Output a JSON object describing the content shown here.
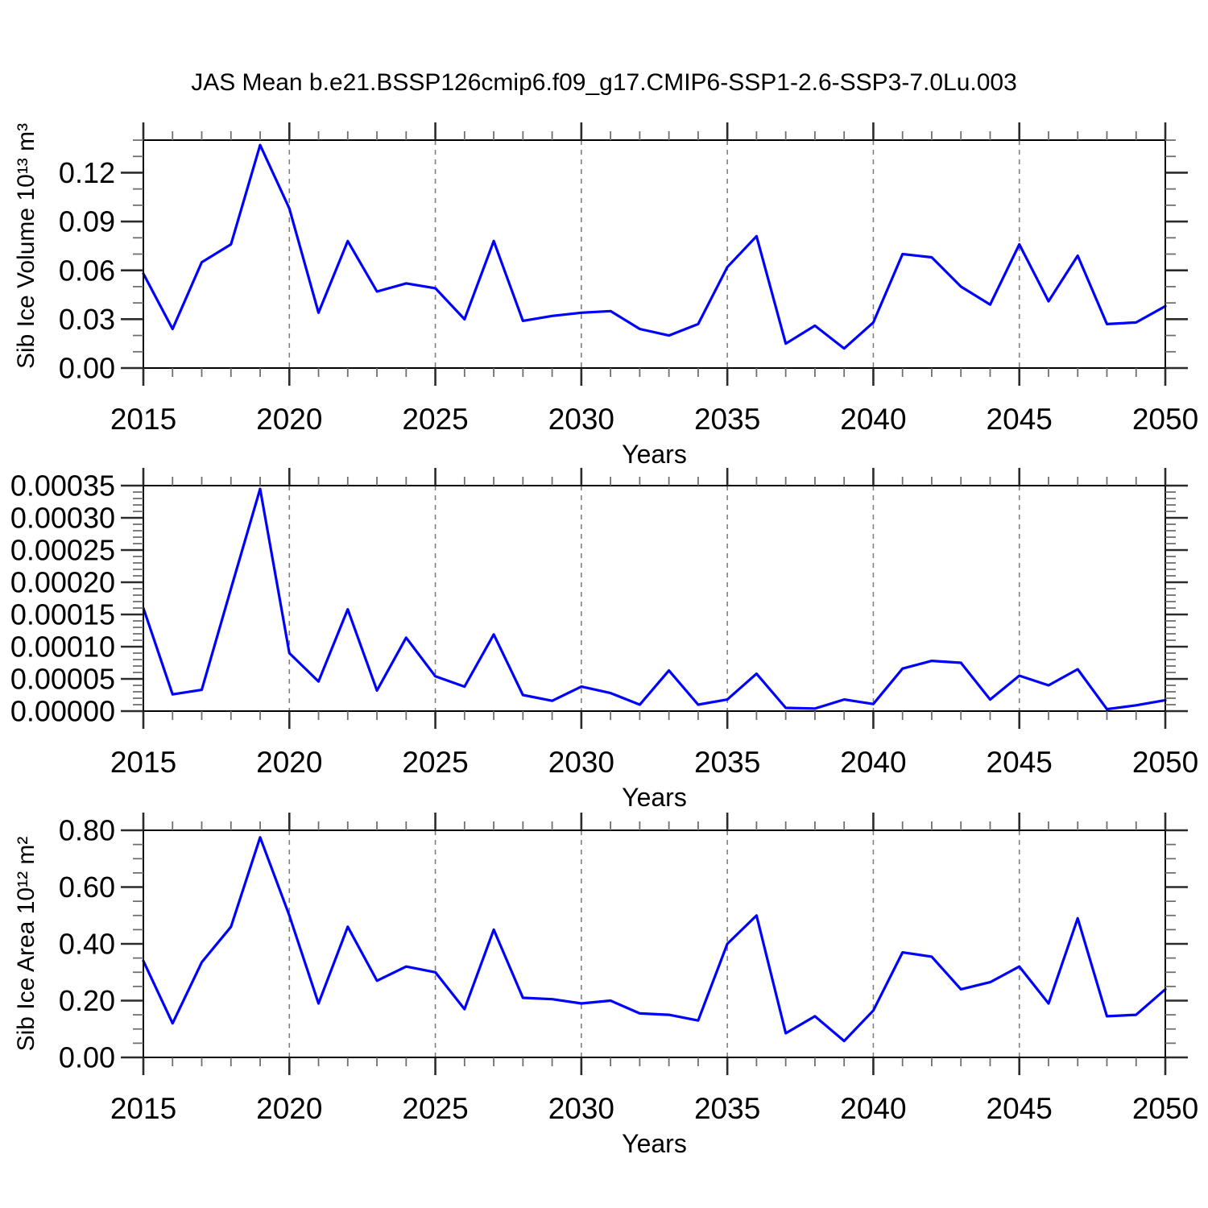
{
  "title": "JAS Mean b.e21.BSSP126cmip6.f09_g17.CMIP6-SSP1-2.6-SSP3-7.0Lu.003",
  "colors": {
    "line": "#0000ff",
    "grid": "#808080",
    "axis": "#000000",
    "background": "#ffffff",
    "text": "#000000"
  },
  "years": [
    2015,
    2016,
    2017,
    2018,
    2019,
    2020,
    2021,
    2022,
    2023,
    2024,
    2025,
    2026,
    2027,
    2028,
    2029,
    2030,
    2031,
    2032,
    2033,
    2034,
    2035,
    2036,
    2037,
    2038,
    2039,
    2040,
    2041,
    2042,
    2043,
    2044,
    2045,
    2046,
    2047,
    2048,
    2049,
    2050
  ],
  "x_axis": {
    "label": "Years",
    "range": [
      2015,
      2050
    ],
    "tick_values": [
      2015,
      2020,
      2025,
      2030,
      2035,
      2040,
      2045,
      2050
    ],
    "tick_labels": [
      "2015",
      "2020",
      "2025",
      "2030",
      "2035",
      "2040",
      "2045",
      "2050"
    ],
    "minor_step": 1,
    "gridline_values": [
      2020,
      2025,
      2030,
      2035,
      2040,
      2045
    ]
  },
  "chart_data": [
    {
      "type": "line",
      "name": "sib-ice-volume",
      "ylabel": "Sib Ice Volume 10¹³ m³",
      "xlabel": "Years",
      "ylim": [
        0,
        0.14
      ],
      "y_tick_values": [
        0,
        0.03,
        0.06,
        0.09,
        0.12
      ],
      "y_tick_labels": [
        "0.00",
        "0.03",
        "0.06",
        "0.09",
        "0.12"
      ],
      "y_minor_step": 0.01,
      "grid": "vertical-only",
      "legend": "none",
      "values": [
        0.058,
        0.024,
        0.065,
        0.076,
        0.137,
        0.098,
        0.034,
        0.078,
        0.047,
        0.052,
        0.049,
        0.03,
        0.078,
        0.029,
        0.032,
        0.034,
        0.035,
        0.024,
        0.02,
        0.027,
        0.062,
        0.081,
        0.015,
        0.026,
        0.012,
        0.028,
        0.07,
        0.068,
        0.05,
        0.039,
        0.076,
        0.041,
        0.069,
        0.027,
        0.028,
        0.038
      ]
    },
    {
      "type": "line",
      "name": "sib-ice-middle",
      "ylabel": "",
      "xlabel": "Years",
      "ylim": [
        0,
        0.00035
      ],
      "y_tick_values": [
        0,
        5e-05,
        0.0001,
        0.00015,
        0.0002,
        0.00025,
        0.0003,
        0.00035
      ],
      "y_tick_labels": [
        "0.00000",
        "0.00005",
        "0.00010",
        "0.00015",
        "0.00020",
        "0.00025",
        "0.00030",
        "0.00035"
      ],
      "y_minor_step": 1e-05,
      "grid": "vertical-only",
      "legend": "none",
      "values": [
        0.00016,
        2.6e-05,
        3.3e-05,
        0.00019,
        0.000345,
        9e-05,
        4.6e-05,
        0.000158,
        3.2e-05,
        0.000114,
        5.4e-05,
        3.8e-05,
        0.000119,
        2.5e-05,
        1.6e-05,
        3.8e-05,
        2.8e-05,
        1e-05,
        6.3e-05,
        1e-05,
        1.8e-05,
        5.8e-05,
        5e-06,
        4e-06,
        1.8e-05,
        1.1e-05,
        6.6e-05,
        7.8e-05,
        7.5e-05,
        1.8e-05,
        5.5e-05,
        4e-05,
        6.5e-05,
        3e-06,
        9e-06,
        1.7e-05
      ]
    },
    {
      "type": "line",
      "name": "sib-ice-area",
      "ylabel": "Sib Ice Area 10¹² m²",
      "xlabel": "Years",
      "ylim": [
        0,
        0.8
      ],
      "y_tick_values": [
        0,
        0.2,
        0.4,
        0.6,
        0.8
      ],
      "y_tick_labels": [
        "0.00",
        "0.20",
        "0.40",
        "0.60",
        "0.80"
      ],
      "y_minor_step": 0.05,
      "grid": "vertical-only",
      "legend": "none",
      "values": [
        0.34,
        0.12,
        0.335,
        0.46,
        0.775,
        0.5,
        0.19,
        0.46,
        0.27,
        0.32,
        0.3,
        0.17,
        0.45,
        0.21,
        0.205,
        0.19,
        0.2,
        0.155,
        0.15,
        0.13,
        0.4,
        0.5,
        0.085,
        0.145,
        0.058,
        0.165,
        0.37,
        0.355,
        0.24,
        0.265,
        0.32,
        0.19,
        0.49,
        0.145,
        0.15,
        0.24
      ]
    }
  ]
}
